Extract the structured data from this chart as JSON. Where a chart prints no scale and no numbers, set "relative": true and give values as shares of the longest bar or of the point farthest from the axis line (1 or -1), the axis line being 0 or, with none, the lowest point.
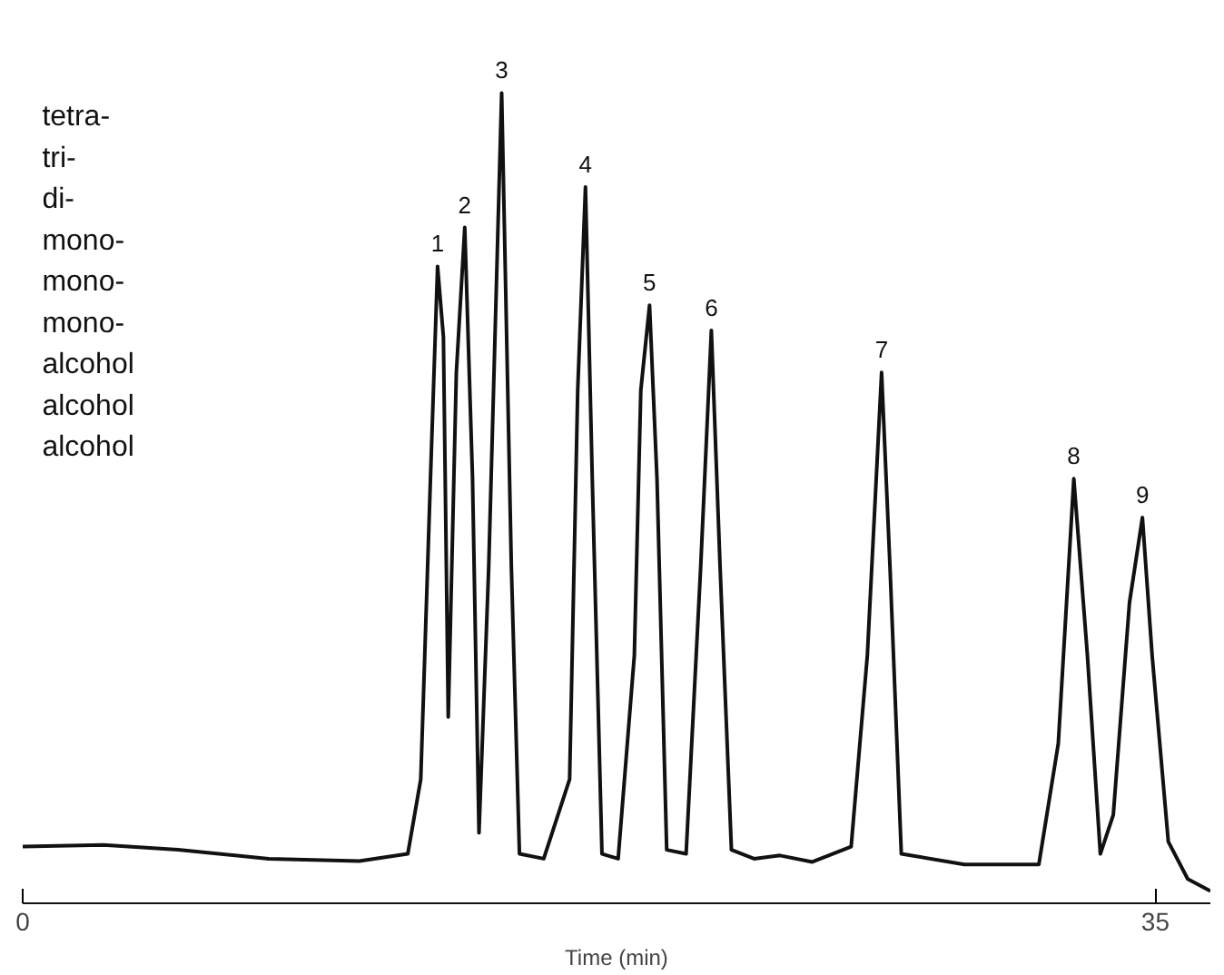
{
  "chart_data": {
    "type": "line",
    "relative": true,
    "xlabel": "Time (min)",
    "xlim": [
      0,
      36.7
    ],
    "xticks": [
      0,
      35
    ],
    "grid": false,
    "marker": "none",
    "line_style": "solid",
    "series": [
      {
        "color": "#111111",
        "x": [
          0,
          2.5,
          4.8,
          7.6,
          10.4,
          11.9,
          12.3,
          12.6,
          12.82,
          13.0,
          13.15,
          13.4,
          13.66,
          13.9,
          14.1,
          14.4,
          14.8,
          15.1,
          15.35,
          16.1,
          16.9,
          17.15,
          17.39,
          17.6,
          17.9,
          18.4,
          18.9,
          19.1,
          19.37,
          19.6,
          19.9,
          20.5,
          20.95,
          21.28,
          21.55,
          21.9,
          22.6,
          23.4,
          24.4,
          25.6,
          26.1,
          26.54,
          26.8,
          27.15,
          29.1,
          31.4,
          32.0,
          32.48,
          32.9,
          33.3,
          33.7,
          34.2,
          34.6,
          34.9,
          35.4,
          36.0,
          36.7
        ],
        "values": [
          0.07,
          0.072,
          0.066,
          0.055,
          0.052,
          0.061,
          0.153,
          0.524,
          0.786,
          0.699,
          0.23,
          0.655,
          0.834,
          0.524,
          0.087,
          0.415,
          1.0,
          0.415,
          0.061,
          0.055,
          0.153,
          0.633,
          0.884,
          0.524,
          0.061,
          0.055,
          0.306,
          0.633,
          0.738,
          0.524,
          0.066,
          0.061,
          0.415,
          0.707,
          0.415,
          0.066,
          0.055,
          0.059,
          0.051,
          0.07,
          0.306,
          0.655,
          0.415,
          0.061,
          0.048,
          0.048,
          0.197,
          0.524,
          0.306,
          0.061,
          0.109,
          0.371,
          0.476,
          0.306,
          0.076,
          0.03,
          0.015
        ]
      }
    ],
    "annotations": [
      "tetra-",
      "tri-",
      "di-",
      "mono-",
      "mono-",
      "mono-",
      "alcohol",
      "alcohol",
      "alcohol",
      {
        "text": "1",
        "x": 12.82,
        "y": 0.786
      },
      {
        "text": "2",
        "x": 13.66,
        "y": 0.834
      },
      {
        "text": "3",
        "x": 14.8,
        "y": 1.0
      },
      {
        "text": "4",
        "x": 17.39,
        "y": 0.884
      },
      {
        "text": "5",
        "x": 19.37,
        "y": 0.738
      },
      {
        "text": "6",
        "x": 21.28,
        "y": 0.707
      },
      {
        "text": "7",
        "x": 26.54,
        "y": 0.655
      },
      {
        "text": "8",
        "x": 32.48,
        "y": 0.524
      },
      {
        "text": "9",
        "x": 34.6,
        "y": 0.476
      }
    ]
  }
}
